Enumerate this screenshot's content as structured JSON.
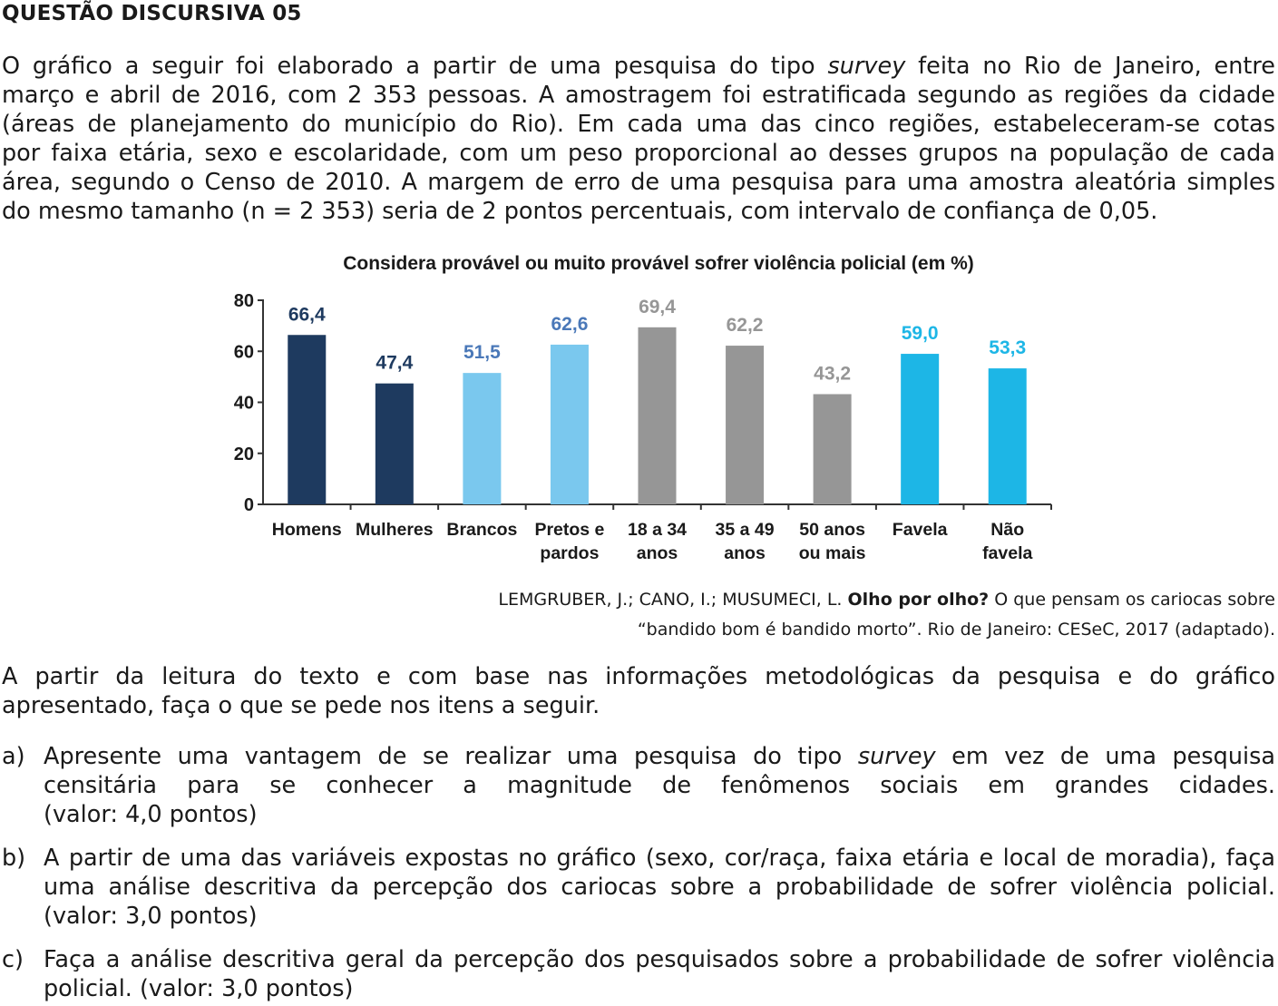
{
  "question_title": "QUESTÃO DISCURSIVA 05",
  "intro": {
    "l1a": "O gráfico a seguir foi elaborado a partir de uma pesquisa do tipo ",
    "l1em": "survey",
    "l1b": " feita no Rio de Janeiro, entre",
    "l2": "março e abril de 2016, com 2 353 pessoas. A amostragem foi estratificada segundo as regiões da cidade",
    "l3": "(áreas de planejamento do município do Rio). Em cada uma das cinco regiões, estabeleceram-se cotas",
    "l4": "por faixa etária, sexo e escolaridade, com um peso proporcional ao desses grupos na população de cada",
    "l5": "área, segundo o Censo de 2010. A margem de erro de uma pesquisa para uma amostra aleatória simples",
    "l6": "do mesmo tamanho (n = 2 353) seria de 2 pontos percentuais, com intervalo de confiança de 0,05."
  },
  "chart_data": {
    "type": "bar",
    "title": "Considera provável ou muito provável sofrer violência policial (em %)",
    "categories": [
      [
        "Homens"
      ],
      [
        "Mulheres"
      ],
      [
        "Brancos"
      ],
      [
        "Pretos e",
        "pardos"
      ],
      [
        "18 a 34",
        "anos"
      ],
      [
        "35 a 49",
        "anos"
      ],
      [
        "50 anos",
        "ou mais"
      ],
      [
        "Favela"
      ],
      [
        "Não",
        "favela"
      ]
    ],
    "values": [
      66.4,
      47.4,
      51.5,
      62.6,
      69.4,
      62.2,
      43.2,
      59.0,
      53.3
    ],
    "value_labels": [
      "66,4",
      "47,4",
      "51,5",
      "62,6",
      "69,4",
      "62,2",
      "43,2",
      "59,0",
      "53,3"
    ],
    "bar_colors": [
      "#1e3a5f",
      "#1e3a5f",
      "#7ac8ee",
      "#7ac8ee",
      "#969696",
      "#969696",
      "#969696",
      "#1db6e6",
      "#1db6e6"
    ],
    "label_colors": [
      "#1e3a5f",
      "#1e3a5f",
      "#4a78b8",
      "#4a78b8",
      "#969696",
      "#969696",
      "#969696",
      "#1db6e6",
      "#1db6e6"
    ],
    "yticks": [
      "0",
      "20",
      "40",
      "60",
      "80"
    ],
    "ylim": [
      0,
      80
    ],
    "grid": false,
    "xlabel": "",
    "ylabel": ""
  },
  "source": {
    "authors": "LEMGRUBER, J.; CANO, I.; MUSUMECI, L. ",
    "book": "Olho por olho?",
    "rest1": " O que pensam os cariocas sobre",
    "line2": "“bandido bom é bandido morto”. Rio de Janeiro: CESeC, 2017 (adaptado)."
  },
  "instruction": {
    "l1": "A partir da leitura do texto e com base nas informações metodológicas da pesquisa e do gráfico",
    "l2": "apresentado, faça o que se pede nos itens a seguir."
  },
  "items": {
    "a": {
      "label": "a)",
      "l1a": "Apresente uma vantagem de se realizar uma pesquisa do tipo ",
      "l1em": "survey",
      "l1b": " em vez de uma pesquisa",
      "l2": "censitária para se conhecer a magnitude de fenômenos sociais em grandes cidades.",
      "l3": "(valor: 4,0 pontos)"
    },
    "b": {
      "label": "b)",
      "l1": "A partir de uma das variáveis expostas no gráfico (sexo, cor/raça, faixa etária e local de moradia), faça",
      "l2": "uma análise descritiva da percepção dos cariocas sobre a probabilidade de sofrer violência policial.",
      "l3": "(valor: 3,0 pontos)"
    },
    "c": {
      "label": "c)",
      "l1": "Faça a análise descritiva geral da percepção dos pesquisados sobre a probabilidade de sofrer violência",
      "l2": "policial. (valor: 3,0 pontos)"
    }
  }
}
